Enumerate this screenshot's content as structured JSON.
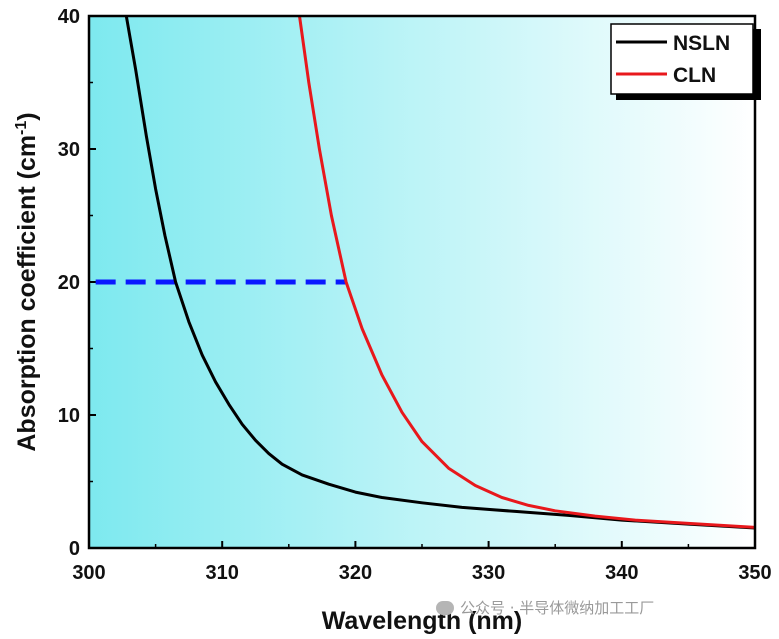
{
  "chart_data": {
    "type": "line",
    "xlabel": "Wavelength (nm)",
    "ylabel_main": "Absorption coefficient (cm",
    "ylabel_sup": "-1",
    "ylabel_end": ")",
    "xlim": [
      300,
      350
    ],
    "ylim": [
      0,
      40
    ],
    "x_ticks": [
      300,
      310,
      320,
      330,
      340,
      350
    ],
    "y_ticks": [
      0,
      10,
      20,
      30,
      40
    ],
    "background": {
      "type": "gradient",
      "from": "#7de9ef",
      "to": "#ffffff"
    },
    "series": [
      {
        "name": "NSLN",
        "color": "#000000",
        "points": [
          [
            302.8,
            40
          ],
          [
            303.5,
            36
          ],
          [
            304.3,
            31
          ],
          [
            305,
            27
          ],
          [
            305.7,
            23.5
          ],
          [
            306.5,
            20
          ],
          [
            307.5,
            17
          ],
          [
            308.5,
            14.5
          ],
          [
            309.5,
            12.5
          ],
          [
            310.5,
            10.8
          ],
          [
            311.5,
            9.3
          ],
          [
            312.5,
            8.1
          ],
          [
            313.5,
            7.1
          ],
          [
            314.5,
            6.3
          ],
          [
            316,
            5.5
          ],
          [
            318,
            4.8
          ],
          [
            320,
            4.2
          ],
          [
            322,
            3.8
          ],
          [
            325,
            3.4
          ],
          [
            328,
            3.05
          ],
          [
            332,
            2.75
          ],
          [
            336,
            2.45
          ],
          [
            340,
            2.1
          ],
          [
            345,
            1.8
          ],
          [
            350,
            1.5
          ]
        ]
      },
      {
        "name": "CLN",
        "color": "#e8181c",
        "points": [
          [
            315.8,
            40
          ],
          [
            316.5,
            35
          ],
          [
            317.3,
            30
          ],
          [
            318.2,
            25
          ],
          [
            319.3,
            20
          ],
          [
            320.5,
            16.5
          ],
          [
            322,
            13
          ],
          [
            323.5,
            10.2
          ],
          [
            325,
            8
          ],
          [
            327,
            6
          ],
          [
            329,
            4.7
          ],
          [
            331,
            3.8
          ],
          [
            333,
            3.2
          ],
          [
            335,
            2.8
          ],
          [
            338,
            2.4
          ],
          [
            341,
            2.1
          ],
          [
            345,
            1.85
          ],
          [
            350,
            1.55
          ]
        ]
      }
    ],
    "annotations": [
      {
        "type": "dashed-hline",
        "y": 20,
        "x_start": 300.5,
        "x_end": 319.3,
        "color": "#0a18ff"
      }
    ],
    "legend_placement": "top-right"
  },
  "watermark": {
    "text": "公众号 · 半导体微纳加工工厂"
  }
}
